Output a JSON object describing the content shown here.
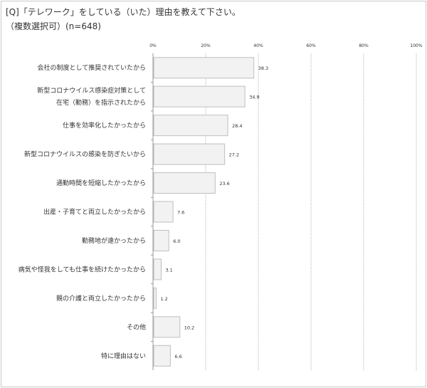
{
  "header": {
    "title": "[Q]「テレワーク」をしている（いた）理由を教えて下さい。",
    "subtitle": "（複数選択可）(n=648)"
  },
  "chart_data": {
    "type": "bar",
    "orientation": "horizontal",
    "title": "[Q]「テレワーク」をしている（いた）理由を教えて下さい。",
    "subtitle": "（複数選択可）(n=648)",
    "categories": [
      [
        "会社の制度として推奨されていたから"
      ],
      [
        "新型コロナウイルス感染症対策として",
        "在宅（勤務）を指示されたから"
      ],
      [
        "仕事を効率化したかったから"
      ],
      [
        "新型コロナウイルスの感染を防ぎたいから"
      ],
      [
        "通勤時間を短縮したかったから"
      ],
      [
        "出産・子育てと両立したかったから"
      ],
      [
        "勤務地が遠かったから"
      ],
      [
        "病気や怪我をしても仕事を続けたかったから"
      ],
      [
        "親の介護と両立したかったから"
      ],
      [
        "その他"
      ],
      [
        "特に理由はない"
      ]
    ],
    "values": [
      38.3,
      34.9,
      28.4,
      27.2,
      23.6,
      7.6,
      6.0,
      3.1,
      1.2,
      10.2,
      6.6
    ],
    "value_labels": [
      "38.3",
      "34.9",
      "28.4",
      "27.2",
      "23.6",
      "7.6",
      "6.0",
      "3.1",
      "1.2",
      "10.2",
      "6.6"
    ],
    "xlim": [
      0,
      100
    ],
    "x_ticks": [
      "0%",
      "20%",
      "40%",
      "60%",
      "80%",
      "100%"
    ],
    "grid": true,
    "legend": "none",
    "colors": {
      "bar_fill": "#f2f2f2",
      "bar_stroke": "#bfbfbf",
      "grid": "#a6a6a6"
    }
  }
}
